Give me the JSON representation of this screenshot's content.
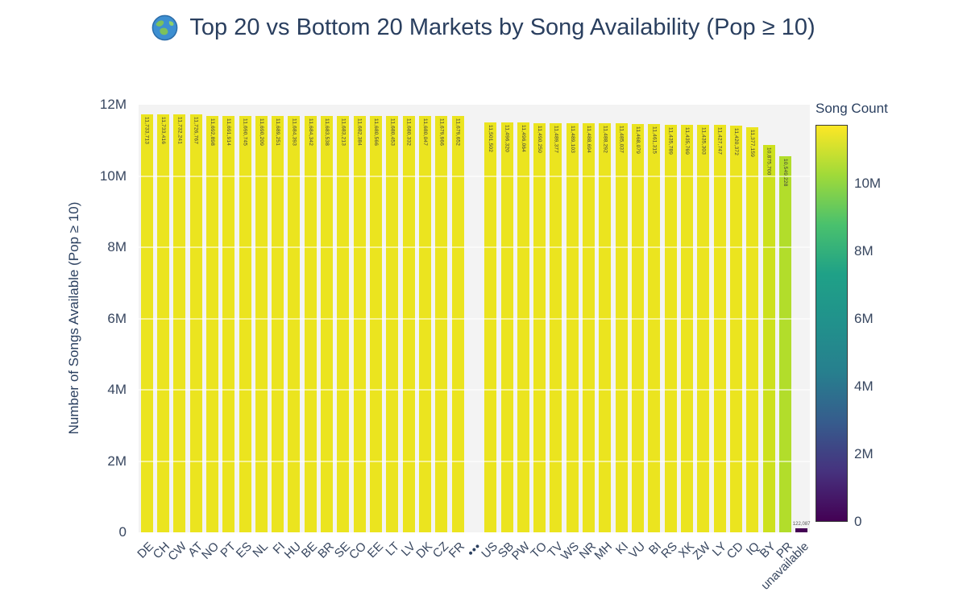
{
  "header": {
    "icon": "globe-icon",
    "title": "Top 20 vs Bottom 20 Markets by Song Availability (Pop ≥ 10)"
  },
  "chart_data": {
    "type": "bar",
    "title": "Top 20 vs Bottom 20 Markets by Song Availability (Pop ≥ 10)",
    "xlabel": "",
    "ylabel": "Number of Songs Available (Pop ≥ 10)",
    "ylim": [
      0,
      12000000
    ],
    "grid": true,
    "grid_values": [
      2000000,
      4000000,
      6000000,
      8000000,
      10000000
    ],
    "yticks": [
      {
        "label": "0",
        "value": 0
      },
      {
        "label": "2M",
        "value": 2000000
      },
      {
        "label": "4M",
        "value": 4000000
      },
      {
        "label": "6M",
        "value": 6000000
      },
      {
        "label": "8M",
        "value": 8000000
      },
      {
        "label": "10M",
        "value": 10000000
      },
      {
        "label": "12M",
        "value": 12000000
      }
    ],
    "bars": [
      {
        "category": "DE",
        "value": 11733713,
        "value_label": "11,733,713",
        "color": "#ebe41f"
      },
      {
        "category": "CH",
        "value": 11733416,
        "value_label": "11,733,416",
        "color": "#ebe41f"
      },
      {
        "category": "CW",
        "value": 11732241,
        "value_label": "11,732,241",
        "color": "#ebe41f"
      },
      {
        "category": "AT",
        "value": 11726767,
        "value_label": "11,726,767",
        "color": "#ebe41f"
      },
      {
        "category": "NO",
        "value": 11692898,
        "value_label": "11,692,898",
        "color": "#ebe41f"
      },
      {
        "category": "PT",
        "value": 11691914,
        "value_label": "11,691,914",
        "color": "#ebe41f"
      },
      {
        "category": "ES",
        "value": 11690745,
        "value_label": "11,690,745",
        "color": "#ebe41f"
      },
      {
        "category": "NL",
        "value": 11690209,
        "value_label": "11,690,209",
        "color": "#ebe41f"
      },
      {
        "category": "FI",
        "value": 11689251,
        "value_label": "11,689,251",
        "color": "#ebe41f"
      },
      {
        "category": "HU",
        "value": 11684393,
        "value_label": "11,684,393",
        "color": "#ebe41f"
      },
      {
        "category": "BE",
        "value": 11684342,
        "value_label": "11,684,342",
        "color": "#ebe41f"
      },
      {
        "category": "BR",
        "value": 11683538,
        "value_label": "11,683,538",
        "color": "#ebe41f"
      },
      {
        "category": "SE",
        "value": 11683213,
        "value_label": "11,683,213",
        "color": "#ebe41f"
      },
      {
        "category": "CO",
        "value": 11682384,
        "value_label": "11,682,384",
        "color": "#ebe41f"
      },
      {
        "category": "EE",
        "value": 11680566,
        "value_label": "11,680,566",
        "color": "#ebe41f"
      },
      {
        "category": "LT",
        "value": 11680453,
        "value_label": "11,680,453",
        "color": "#ebe41f"
      },
      {
        "category": "LV",
        "value": 11680332,
        "value_label": "11,680,332",
        "color": "#ebe41f"
      },
      {
        "category": "DK",
        "value": 11680047,
        "value_label": "11,680,047",
        "color": "#ebe41f"
      },
      {
        "category": "CZ",
        "value": 11679966,
        "value_label": "11,679,966",
        "color": "#ebe41f"
      },
      {
        "category": "FR",
        "value": 11679652,
        "value_label": "11,679,652",
        "color": "#ebe41f"
      },
      {
        "category": "•••",
        "value": null,
        "separator": true
      },
      {
        "category": "US",
        "value": 11501502,
        "value_label": "11,501,502",
        "color": "#ebe41f"
      },
      {
        "category": "SB",
        "value": 11496320,
        "value_label": "11,496,320",
        "color": "#ebe41f"
      },
      {
        "category": "PW",
        "value": 11496064,
        "value_label": "11,496,064",
        "color": "#ebe41f"
      },
      {
        "category": "TO",
        "value": 11490250,
        "value_label": "11,490,250",
        "color": "#ebe41f"
      },
      {
        "category": "TV",
        "value": 11489377,
        "value_label": "11,489,377",
        "color": "#ebe41f"
      },
      {
        "category": "WS",
        "value": 11489103,
        "value_label": "11,489,103",
        "color": "#ebe41f"
      },
      {
        "category": "NR",
        "value": 11488694,
        "value_label": "11,488,694",
        "color": "#ebe41f"
      },
      {
        "category": "MH",
        "value": 11488292,
        "value_label": "11,488,292",
        "color": "#ebe41f"
      },
      {
        "category": "KI",
        "value": 11485037,
        "value_label": "11,485,037",
        "color": "#ebe41f"
      },
      {
        "category": "VU",
        "value": 11468079,
        "value_label": "11,468,079",
        "color": "#ebe41f"
      },
      {
        "category": "BI",
        "value": 11461315,
        "value_label": "11,461,315",
        "color": "#ebe41f"
      },
      {
        "category": "RS",
        "value": 11435789,
        "value_label": "11,435,789",
        "color": "#ebe41f"
      },
      {
        "category": "XK",
        "value": 11435769,
        "value_label": "11,435,769",
        "color": "#ebe41f"
      },
      {
        "category": "ZW",
        "value": 11435303,
        "value_label": "11,435,303",
        "color": "#ebe41f"
      },
      {
        "category": "LY",
        "value": 11427747,
        "value_label": "11,427,747",
        "color": "#ebe41f"
      },
      {
        "category": "CD",
        "value": 11420372,
        "value_label": "11,420,372",
        "color": "#ebe41f"
      },
      {
        "category": "IQ",
        "value": 11377159,
        "value_label": "11,377,159",
        "color": "#eae41f"
      },
      {
        "category": "BY",
        "value": 10875700,
        "value_label": "10,875,700",
        "color": "#cde11d"
      },
      {
        "category": "PR",
        "value": 10549228,
        "value_label": "10,549,228",
        "color": "#b2dd2b"
      },
      {
        "category": "unavailable",
        "value": 122087,
        "value_label": "122,087",
        "color": "#440154",
        "label_position": "outside"
      }
    ],
    "colorbar": {
      "title": "Song Count",
      "cmin": 0,
      "cmax": 11733713,
      "colormap": "viridis",
      "gradient_stops": [
        "#440154",
        "#46327e",
        "#365c8d",
        "#277f8e",
        "#21918c",
        "#1fa187",
        "#4ac16d",
        "#a0da39",
        "#fde725"
      ],
      "ticks": [
        {
          "label": "0",
          "value": 0
        },
        {
          "label": "2M",
          "value": 2000000
        },
        {
          "label": "4M",
          "value": 4000000
        },
        {
          "label": "6M",
          "value": 6000000
        },
        {
          "label": "8M",
          "value": 8000000
        },
        {
          "label": "10M",
          "value": 10000000
        }
      ]
    },
    "colors": {
      "text": "#2a3f5f",
      "plot_bg": "#f3f3f3",
      "page_bg": "#ffffff"
    }
  }
}
